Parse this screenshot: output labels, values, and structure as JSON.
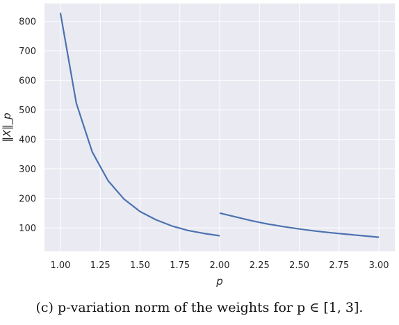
{
  "chart_data": {
    "type": "line",
    "xlabel": "p",
    "ylabel": "‖X‖_p",
    "xlim": [
      0.9,
      3.1
    ],
    "ylim": [
      20,
      860
    ],
    "x_ticks": [
      1.0,
      1.25,
      1.5,
      1.75,
      2.0,
      2.25,
      2.5,
      2.75,
      3.0
    ],
    "x_tick_labels": [
      "1.00",
      "1.25",
      "1.50",
      "1.75",
      "2.00",
      "2.25",
      "2.50",
      "2.75",
      "3.00"
    ],
    "y_ticks": [
      100,
      200,
      300,
      400,
      500,
      600,
      700,
      800
    ],
    "y_tick_labels": [
      "100",
      "200",
      "300",
      "400",
      "500",
      "600",
      "700",
      "800"
    ],
    "grid": true,
    "background": "#eaeaf2",
    "line_color": "#4c72b0",
    "series": [
      {
        "segments": [
          {
            "x": [
              1.0,
              1.1,
              1.2,
              1.3,
              1.4,
              1.5,
              1.6,
              1.7,
              1.8,
              1.9,
              2.0
            ],
            "y": [
              828,
              522,
              357,
              259,
              197,
              155,
              127,
              106,
              91,
              81,
              73
            ]
          },
          {
            "x": [
              2.0,
              2.1,
              2.2,
              2.3,
              2.4,
              2.5,
              2.6,
              2.7,
              2.8,
              2.9,
              3.0
            ],
            "y": [
              150,
              137,
              124,
              113,
              104,
              96,
              89,
              83,
              78,
              73,
              68
            ]
          }
        ]
      }
    ]
  },
  "caption": "(c) p-variation norm of the weights for p ∈ [1, 3]."
}
